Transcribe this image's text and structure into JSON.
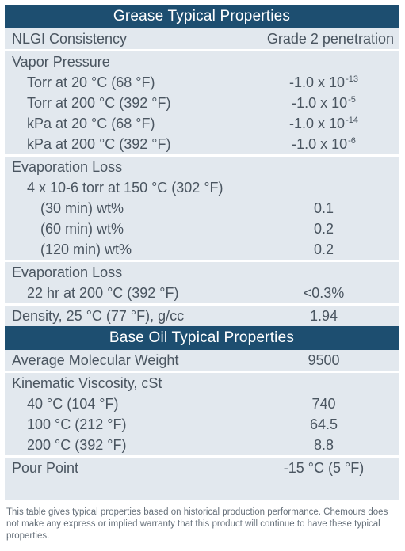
{
  "grease_header": "Grease Typical Properties",
  "nlgi": {
    "label": "NLGI Consistency",
    "value": "Grade 2 penetration"
  },
  "vapor": {
    "title": "Vapor Pressure",
    "rows": [
      {
        "label": "Torr at 20 °C (68 °F)",
        "base": "-1.0 x 10",
        "exp": "-13"
      },
      {
        "label": "Torr at 200 °C (392 °F)",
        "base": "-1.0 x 10",
        "exp": "-5"
      },
      {
        "label": "kPa at 20 °C (68 °F)",
        "base": "-1.0 x 10",
        "exp": "-14"
      },
      {
        "label": "kPa at 200 °C (392 °F)",
        "base": "-1.0 x 10",
        "exp": "-6"
      }
    ]
  },
  "evap1": {
    "title": "Evaporation Loss",
    "condition": "4 x 10-6 torr at 150 °C (302 °F)",
    "rows": [
      {
        "label": "(30 min) wt%",
        "value": "0.1"
      },
      {
        "label": "(60 min) wt%",
        "value": "0.2"
      },
      {
        "label": "(120 min) wt%",
        "value": "0.2"
      }
    ]
  },
  "evap2": {
    "title": "Evaporation Loss",
    "label": "22 hr at 200 °C (392 °F)",
    "value": "<0.3%"
  },
  "density": {
    "label": "Density, 25 °C (77 °F), g/cc",
    "value": "1.94"
  },
  "base_header": "Base Oil Typical Properties",
  "mw": {
    "label": "Average Molecular Weight",
    "value": "9500"
  },
  "visc": {
    "title": "Kinematic Viscosity, cSt",
    "rows": [
      {
        "label": "40 °C (104 °F)",
        "value": "740"
      },
      {
        "label": "100 °C (212 °F)",
        "value": "64.5"
      },
      {
        "label": "200 °C (392 °F)",
        "value": "8.8"
      }
    ]
  },
  "pour": {
    "label": "Pour Point",
    "value": "-15 °C (5 °F)"
  },
  "footnote": "This table gives typical properties based on historical production performance. Chemours does not make any express or implied warranty that this product will continue to have these typical properties."
}
